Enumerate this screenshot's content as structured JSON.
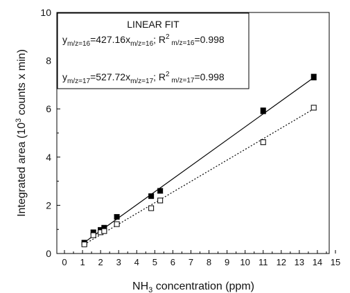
{
  "chart_data": {
    "type": "scatter",
    "xlabel": {
      "main": "NH",
      "sub": "3",
      "rest": " concentration (ppm)"
    },
    "ylabel": {
      "main": "Integrated area (10",
      "sup": "3",
      "rest": " counts x min)"
    },
    "xlim": [
      0,
      15
    ],
    "ylim": [
      0,
      10
    ],
    "x_ticks": [
      0,
      1,
      2,
      3,
      4,
      5,
      6,
      7,
      8,
      9,
      10,
      11,
      12,
      13,
      14,
      15
    ],
    "y_ticks": [
      0,
      2,
      4,
      6,
      8,
      10
    ],
    "grid": false,
    "legend": {
      "title": "LINEAR FIT",
      "placement": "top-left",
      "entries": [
        {
          "series": "m/z=16",
          "equation": "y_m/z=16 = 427.16 x_m/z=16",
          "r2": "0.998"
        },
        {
          "series": "m/z=17",
          "equation": "y_m/z=17 = 527.72 x_m/z=17",
          "r2": "0.998"
        }
      ]
    },
    "series": [
      {
        "marker": "filled-square",
        "color": "#000000",
        "fit_line": "solid",
        "fit": {
          "x": [
            1.1,
            13.8
          ],
          "y": [
            0.46,
            7.3
          ]
        },
        "points": [
          {
            "x": 1.1,
            "y": 0.45,
            "err": 0.08
          },
          {
            "x": 1.6,
            "y": 0.88,
            "err": 0.08
          },
          {
            "x": 2.0,
            "y": 0.98,
            "err": 0.08
          },
          {
            "x": 2.2,
            "y": 1.07,
            "err": 0.08
          },
          {
            "x": 2.9,
            "y": 1.52,
            "err": 0.08
          },
          {
            "x": 4.8,
            "y": 2.38,
            "err": 0.08
          },
          {
            "x": 5.3,
            "y": 2.6,
            "err": 0.1
          },
          {
            "x": 11.0,
            "y": 5.92,
            "err": 0.12
          },
          {
            "x": 13.8,
            "y": 7.32,
            "err": 0.12
          }
        ]
      },
      {
        "marker": "open-square",
        "color": "#000000",
        "fit_line": "dotted",
        "fit": {
          "x": [
            1.1,
            13.8
          ],
          "y": [
            0.38,
            6.0
          ]
        },
        "points": [
          {
            "x": 1.1,
            "y": 0.38,
            "err": 0.08
          },
          {
            "x": 1.6,
            "y": 0.76,
            "err": 0.08
          },
          {
            "x": 2.0,
            "y": 0.88,
            "err": 0.08
          },
          {
            "x": 2.2,
            "y": 0.93,
            "err": 0.08
          },
          {
            "x": 2.9,
            "y": 1.22,
            "err": 0.08
          },
          {
            "x": 4.8,
            "y": 1.88,
            "err": 0.08
          },
          {
            "x": 5.3,
            "y": 2.2,
            "err": 0.1
          },
          {
            "x": 11.0,
            "y": 4.62,
            "err": 0.1
          },
          {
            "x": 13.8,
            "y": 6.05,
            "err": 0.1
          }
        ]
      }
    ]
  }
}
